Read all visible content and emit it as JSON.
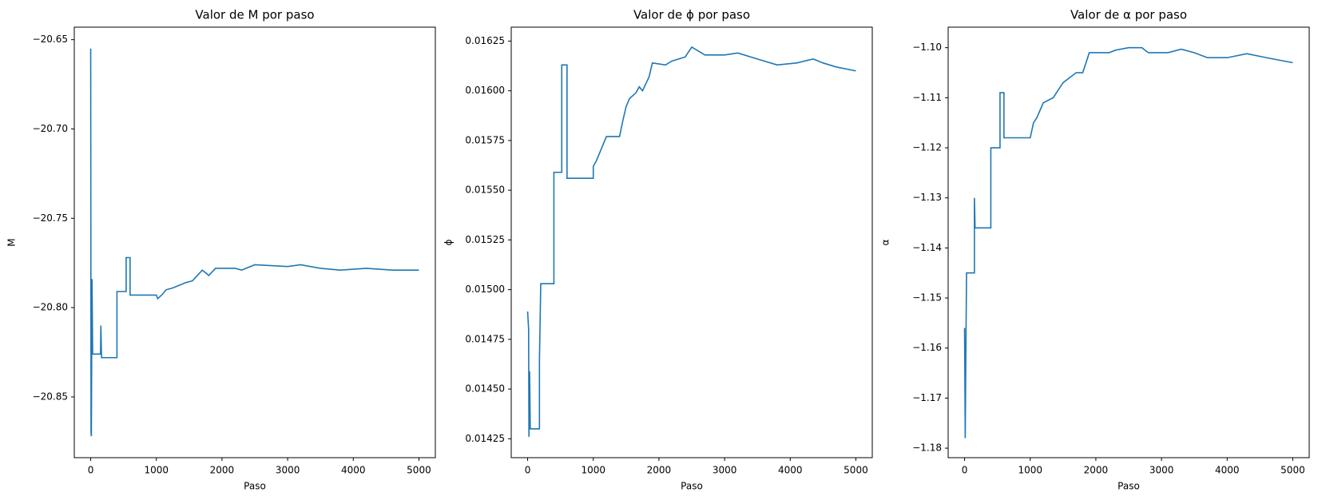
{
  "chart_data": [
    {
      "type": "line",
      "title": "Valor de M por paso",
      "xlabel": "Paso",
      "ylabel": "M",
      "color": "#1f77b4",
      "x": [
        0,
        5,
        10,
        20,
        30,
        150,
        155,
        165,
        400,
        400,
        540,
        540,
        600,
        600,
        1000,
        1020,
        1080,
        1150,
        1250,
        1450,
        1550,
        1700,
        1800,
        1900,
        2200,
        2300,
        2500,
        3000,
        3200,
        3500,
        3800,
        4200,
        4600,
        5000
      ],
      "values": [
        -20.655,
        -20.87,
        -20.872,
        -20.784,
        -20.826,
        -20.826,
        -20.81,
        -20.828,
        -20.828,
        -20.791,
        -20.791,
        -20.772,
        -20.772,
        -20.793,
        -20.793,
        -20.795,
        -20.793,
        -20.79,
        -20.789,
        -20.786,
        -20.785,
        -20.779,
        -20.782,
        -20.778,
        -20.778,
        -20.779,
        -20.776,
        -20.777,
        -20.776,
        -20.778,
        -20.779,
        -20.778,
        -20.779,
        -20.779
      ],
      "xlim": [
        -250,
        5250
      ],
      "ylim": [
        -20.884,
        -20.643
      ],
      "xticks": [
        0,
        1000,
        2000,
        3000,
        4000,
        5000
      ],
      "yticks": [
        {
          "value": -20.85,
          "label": "−20.85"
        },
        {
          "value": -20.8,
          "label": "−20.80"
        },
        {
          "value": -20.75,
          "label": "−20.75"
        },
        {
          "value": -20.7,
          "label": "−20.70"
        },
        {
          "value": -20.65,
          "label": "−20.65"
        }
      ]
    },
    {
      "type": "line",
      "title": "Valor de ϕ por paso",
      "xlabel": "Paso",
      "ylabel": "ϕ",
      "color": "#1f77b4",
      "x": [
        0,
        15,
        20,
        30,
        40,
        180,
        180,
        200,
        400,
        400,
        520,
        520,
        600,
        600,
        1000,
        1000,
        1050,
        1100,
        1200,
        1400,
        1450,
        1500,
        1550,
        1650,
        1700,
        1750,
        1850,
        1900,
        2100,
        2200,
        2400,
        2500,
        2700,
        3000,
        3200,
        3500,
        3800,
        4100,
        4350,
        4500,
        4700,
        5000
      ],
      "values": [
        0.01489,
        0.0148,
        0.01426,
        0.01459,
        0.0143,
        0.0143,
        0.01465,
        0.01503,
        0.01503,
        0.01559,
        0.01559,
        0.01613,
        0.01613,
        0.01556,
        0.01556,
        0.01562,
        0.01565,
        0.01569,
        0.01577,
        0.01577,
        0.01585,
        0.01592,
        0.01596,
        0.01599,
        0.01602,
        0.016,
        0.01607,
        0.01614,
        0.01613,
        0.01615,
        0.01617,
        0.01622,
        0.01618,
        0.01618,
        0.01619,
        0.01616,
        0.01613,
        0.01614,
        0.01616,
        0.01614,
        0.01612,
        0.0161
      ],
      "xlim": [
        -250,
        5250
      ],
      "ylim": [
        0.014155,
        0.01632
      ],
      "xticks": [
        0,
        1000,
        2000,
        3000,
        4000,
        5000
      ],
      "yticks": [
        0.01425,
        {
          "value": 0.0145,
          "label": "0.01450"
        },
        0.01475,
        {
          "value": 0.015,
          "label": "0.01500"
        },
        0.01525,
        {
          "value": 0.0155,
          "label": "0.01550"
        },
        0.01575,
        {
          "value": 0.016,
          "label": "0.01600"
        },
        0.01625
      ]
    },
    {
      "type": "line",
      "title": "Valor de α por paso",
      "xlabel": "Paso",
      "ylabel": "α",
      "color": "#1f77b4",
      "x": [
        0,
        10,
        20,
        30,
        150,
        150,
        160,
        400,
        400,
        540,
        540,
        600,
        600,
        1000,
        1050,
        1100,
        1200,
        1350,
        1400,
        1500,
        1600,
        1700,
        1800,
        1900,
        2200,
        2300,
        2500,
        2700,
        2800,
        3100,
        3300,
        3500,
        3700,
        4000,
        4300,
        4600,
        5000
      ],
      "values": [
        -1.156,
        -1.178,
        -1.16,
        -1.145,
        -1.145,
        -1.13,
        -1.136,
        -1.136,
        -1.12,
        -1.12,
        -1.109,
        -1.109,
        -1.118,
        -1.118,
        -1.115,
        -1.114,
        -1.111,
        -1.11,
        -1.109,
        -1.107,
        -1.106,
        -1.105,
        -1.105,
        -1.101,
        -1.101,
        -1.1005,
        -1.1,
        -1.1,
        -1.101,
        -1.101,
        -1.1003,
        -1.101,
        -1.102,
        -1.102,
        -1.1012,
        -1.102,
        -1.103
      ],
      "xlim": [
        -250,
        5250
      ],
      "ylim": [
        -1.1819,
        -1.0959
      ],
      "xticks": [
        0,
        1000,
        2000,
        3000,
        4000,
        5000
      ],
      "yticks": [
        {
          "value": -1.18,
          "label": "−1.18"
        },
        {
          "value": -1.17,
          "label": "−1.17"
        },
        {
          "value": -1.16,
          "label": "−1.16"
        },
        {
          "value": -1.15,
          "label": "−1.15"
        },
        {
          "value": -1.14,
          "label": "−1.14"
        },
        {
          "value": -1.13,
          "label": "−1.13"
        },
        {
          "value": -1.12,
          "label": "−1.12"
        },
        {
          "value": -1.11,
          "label": "−1.11"
        },
        {
          "value": -1.1,
          "label": "−1.10"
        }
      ]
    }
  ]
}
